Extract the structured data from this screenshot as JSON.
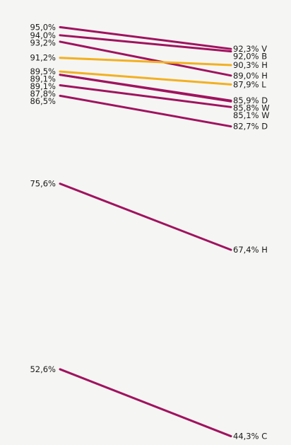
{
  "chart_data": {
    "type": "line",
    "x": [
      "left",
      "right"
    ],
    "ylim": [
      44,
      96
    ],
    "colors": {
      "default": "#a0135f",
      "highlight": "#f2b021"
    },
    "left_labels": [
      "95,0%",
      "94,0%",
      "93,2%",
      "91,2%",
      "89,5%",
      "89,1%",
      "89,1%",
      "87,8%",
      "86,5%",
      "75,6%",
      "52,6%"
    ],
    "right_labels": [
      "92,3% V",
      "92,0% B",
      "90,3% H",
      "89,0% H",
      "87,9% L",
      "85,9% D",
      "85,8% W",
      "85,1% W",
      "82,7% D",
      "67,4% H",
      "44,3% C"
    ],
    "series": [
      {
        "start": 95.0,
        "end": 92.3,
        "highlight": false
      },
      {
        "start": 94.0,
        "end": 92.0,
        "highlight": false
      },
      {
        "start": 93.2,
        "end": 89.0,
        "highlight": false
      },
      {
        "start": 91.2,
        "end": 90.3,
        "highlight": true
      },
      {
        "start": 89.5,
        "end": 87.9,
        "highlight": true
      },
      {
        "start": 89.1,
        "end": 85.9,
        "highlight": false
      },
      {
        "start": 89.1,
        "end": 85.8,
        "highlight": false
      },
      {
        "start": 87.8,
        "end": 85.1,
        "highlight": false
      },
      {
        "start": 86.5,
        "end": 82.7,
        "highlight": false
      },
      {
        "start": 75.6,
        "end": 67.4,
        "highlight": false
      },
      {
        "start": 52.6,
        "end": 44.3,
        "highlight": false
      }
    ]
  }
}
